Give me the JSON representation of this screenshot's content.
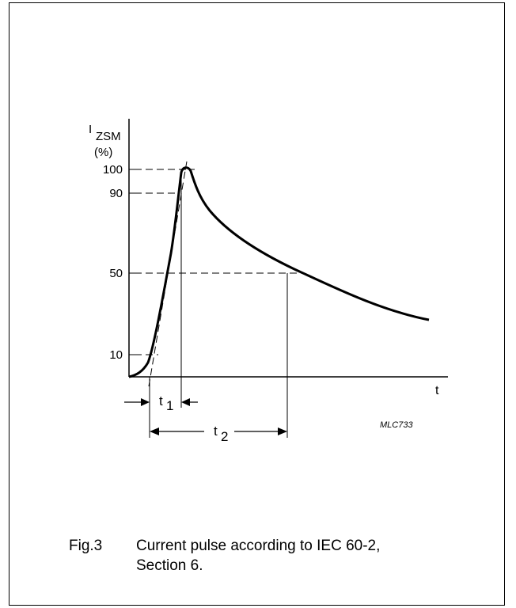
{
  "figure": {
    "y_symbol": "I",
    "y_subscript": "ZSM",
    "y_unit": "(%)",
    "y_ticks": [
      "100",
      "90",
      "50",
      "10"
    ],
    "x_symbol": "t",
    "t1_symbol": "t",
    "t1_sub": "1",
    "t2_symbol": "t",
    "t2_sub": "2",
    "code": "MLC733"
  },
  "caption": {
    "number": "Fig.3",
    "text": "Current pulse according to IEC 60-2, Section 6."
  },
  "chart_data": {
    "type": "line",
    "series": [
      {
        "values_percent_of_peak": [
          0,
          10,
          50,
          90,
          100,
          90,
          50,
          24
        ],
        "points_description_phase": [
          "start",
          "10% rise",
          "50% rise",
          "90% rise",
          "peak",
          "90% decay",
          "50% decay",
          "end"
        ]
      }
    ],
    "y_ticks": [
      100,
      90,
      50,
      10
    ],
    "grid": false
  }
}
